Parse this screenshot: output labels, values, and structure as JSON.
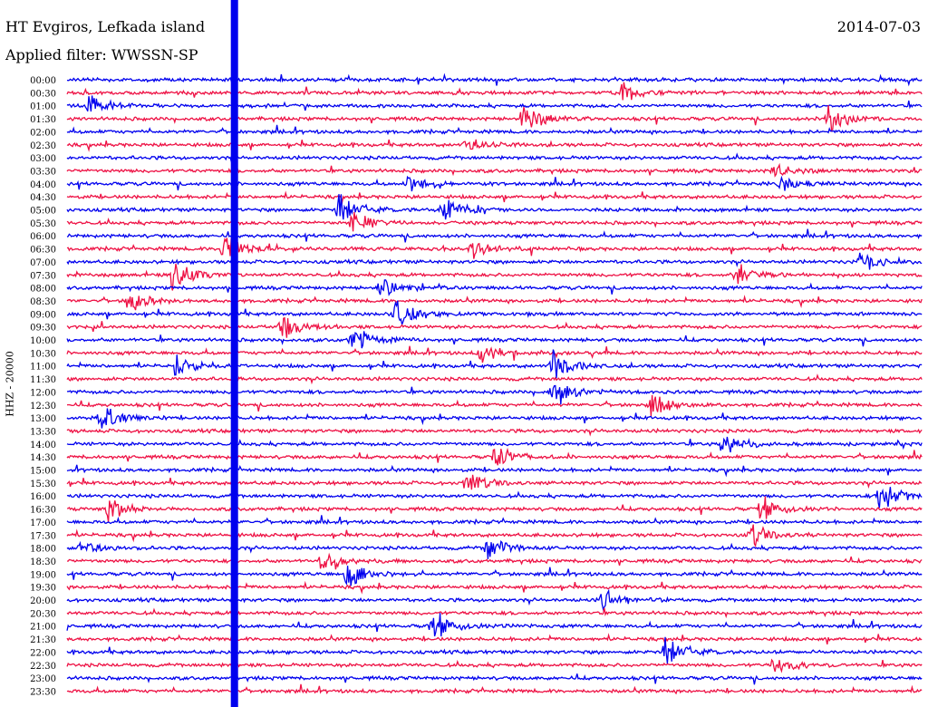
{
  "header": {
    "station": "HT Evgiros, Lefkada island",
    "filter": "Applied filter: WWSSN-SP",
    "date": "2014-07-03"
  },
  "chart_data": {
    "type": "helicorder",
    "ylabel": "HHZ - 20000",
    "times": [
      "00:00",
      "00:30",
      "01:00",
      "01:30",
      "02:00",
      "02:30",
      "03:00",
      "03:30",
      "04:00",
      "04:30",
      "05:00",
      "05:30",
      "06:00",
      "06:30",
      "07:00",
      "07:30",
      "08:00",
      "08:30",
      "09:00",
      "09:30",
      "10:00",
      "10:30",
      "11:00",
      "11:30",
      "12:00",
      "12:30",
      "13:00",
      "13:30",
      "14:00",
      "14:30",
      "15:00",
      "15:30",
      "16:00",
      "16:30",
      "17:00",
      "17:30",
      "18:00",
      "18:30",
      "19:00",
      "19:30",
      "20:00",
      "20:30",
      "21:00",
      "21:30",
      "22:00",
      "22:30",
      "23:00",
      "23:30"
    ],
    "trace_colors": [
      "#0000ee",
      "#ee1144"
    ],
    "minutes_per_line": 30,
    "events": [
      {
        "line": 1,
        "minute": 19.5,
        "amp": 1.0
      },
      {
        "line": 2,
        "minute": 0.8,
        "amp": 1.0
      },
      {
        "line": 3,
        "minute": 16.0,
        "amp": 1.5
      },
      {
        "line": 3,
        "minute": 26.7,
        "amp": 1.4
      },
      {
        "line": 5,
        "minute": 14.0,
        "amp": 0.7
      },
      {
        "line": 7,
        "minute": 24.8,
        "amp": 0.8
      },
      {
        "line": 8,
        "minute": 25.0,
        "amp": 0.9
      },
      {
        "line": 8,
        "minute": 12.0,
        "amp": 1.2
      },
      {
        "line": 10,
        "minute": 9.5,
        "amp": 1.8
      },
      {
        "line": 10,
        "minute": 13.2,
        "amp": 1.4
      },
      {
        "line": 11,
        "minute": 10.0,
        "amp": 1.3
      },
      {
        "line": 13,
        "minute": 5.5,
        "amp": 1.6
      },
      {
        "line": 13,
        "minute": 14.2,
        "amp": 1.2
      },
      {
        "line": 14,
        "minute": 27.8,
        "amp": 1.1
      },
      {
        "line": 15,
        "minute": 3.7,
        "amp": 1.8
      },
      {
        "line": 15,
        "minute": 23.5,
        "amp": 1.4
      },
      {
        "line": 16,
        "minute": 11.0,
        "amp": 1.2
      },
      {
        "line": 17,
        "minute": 2.2,
        "amp": 1.1
      },
      {
        "line": 18,
        "minute": 11.5,
        "amp": 2.0
      },
      {
        "line": 19,
        "minute": 7.5,
        "amp": 1.5
      },
      {
        "line": 20,
        "minute": 10.0,
        "amp": 1.5
      },
      {
        "line": 21,
        "minute": 14.5,
        "amp": 1.3
      },
      {
        "line": 22,
        "minute": 3.8,
        "amp": 1.0
      },
      {
        "line": 22,
        "minute": 17.0,
        "amp": 1.6
      },
      {
        "line": 24,
        "minute": 17.0,
        "amp": 1.4
      },
      {
        "line": 25,
        "minute": 20.5,
        "amp": 1.3
      },
      {
        "line": 26,
        "minute": 1.2,
        "amp": 1.6
      },
      {
        "line": 28,
        "minute": 23.0,
        "amp": 1.3
      },
      {
        "line": 29,
        "minute": 15.0,
        "amp": 1.2
      },
      {
        "line": 31,
        "minute": 14.0,
        "amp": 1.1
      },
      {
        "line": 32,
        "minute": 28.5,
        "amp": 1.5
      },
      {
        "line": 33,
        "minute": 1.4,
        "amp": 1.4
      },
      {
        "line": 33,
        "minute": 24.3,
        "amp": 1.3
      },
      {
        "line": 35,
        "minute": 24.0,
        "amp": 1.1
      },
      {
        "line": 36,
        "minute": 0.5,
        "amp": 1.0
      },
      {
        "line": 36,
        "minute": 14.7,
        "amp": 1.3
      },
      {
        "line": 37,
        "minute": 8.9,
        "amp": 1.1
      },
      {
        "line": 38,
        "minute": 9.8,
        "amp": 1.5
      },
      {
        "line": 40,
        "minute": 18.8,
        "amp": 1.2
      },
      {
        "line": 42,
        "minute": 12.8,
        "amp": 1.6
      },
      {
        "line": 44,
        "minute": 21.0,
        "amp": 1.7
      },
      {
        "line": 45,
        "minute": 24.8,
        "amp": 1.2
      }
    ],
    "vertical_spike": {
      "minute": 5.87,
      "color": "#0000ee"
    }
  }
}
